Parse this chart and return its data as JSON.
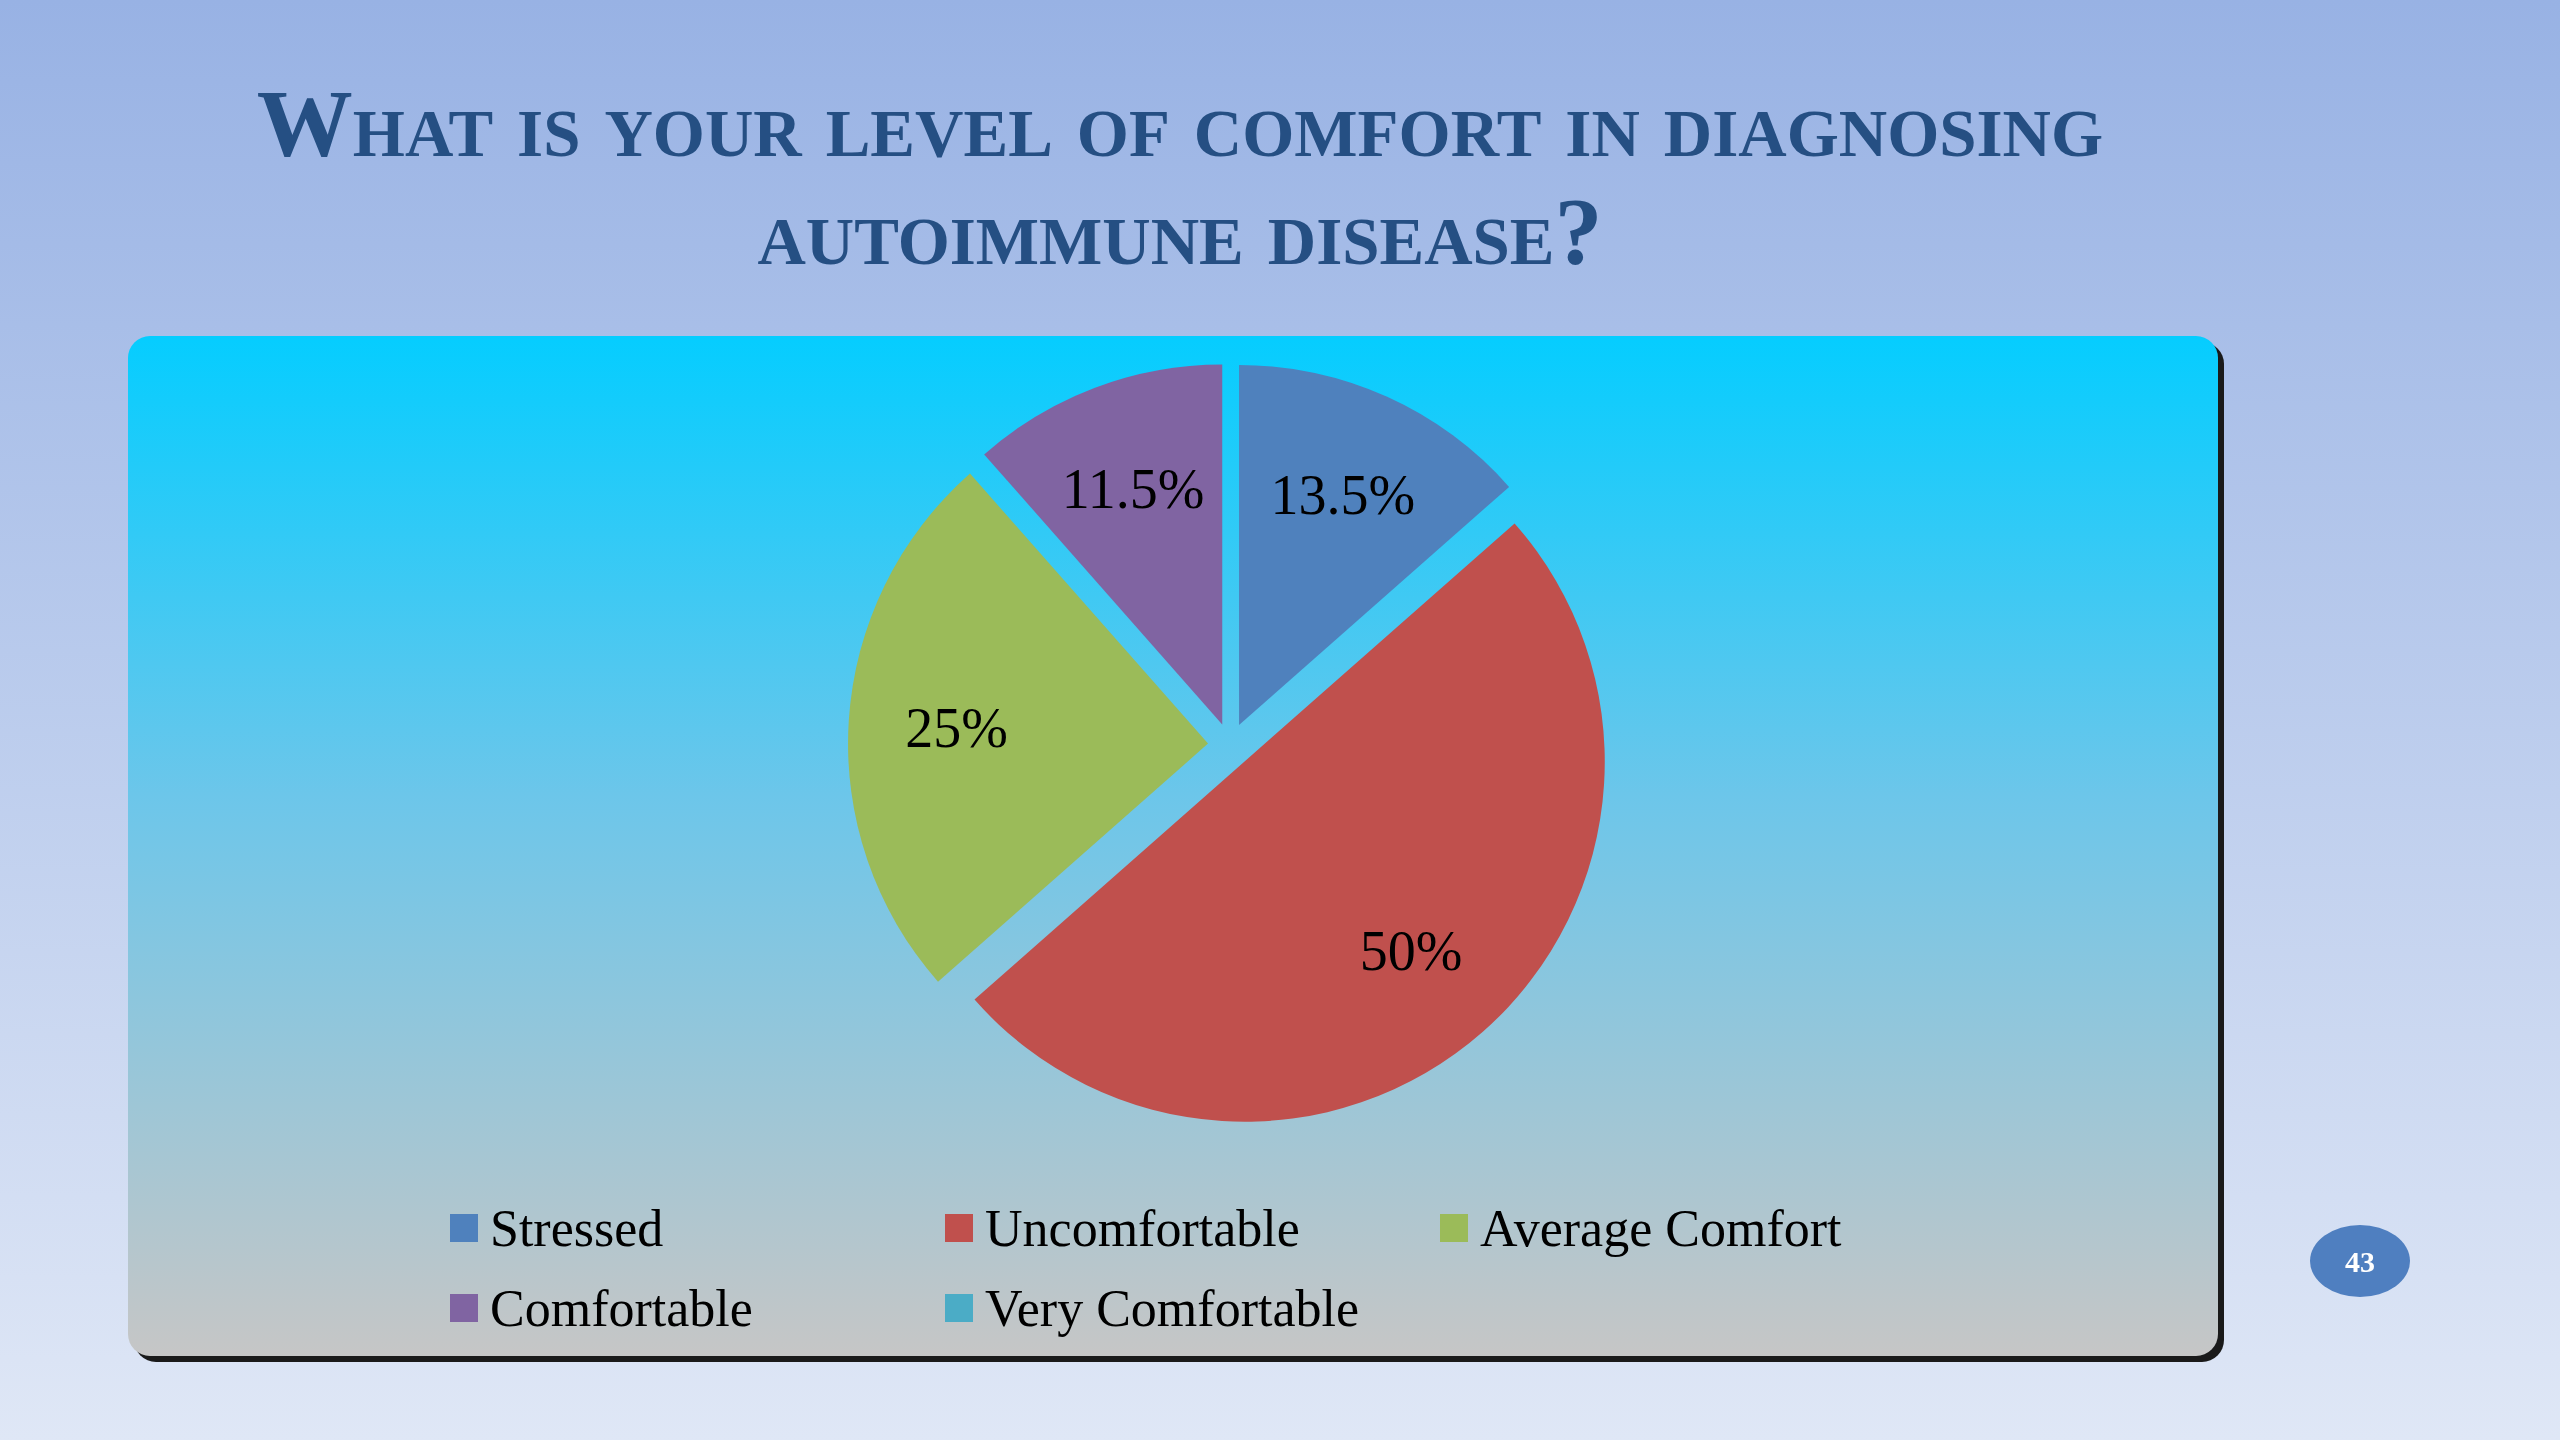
{
  "chart_data": {
    "type": "pie",
    "title": "What is your level of comfort in diagnosing autoimmune disease?",
    "categories": [
      "Stressed",
      "Uncomfortable",
      "Average Comfort",
      "Comfortable",
      "Very Comfortable"
    ],
    "values": [
      13.5,
      50,
      25,
      11.5,
      0
    ],
    "colors": [
      "#4f81bd",
      "#c0504d",
      "#9bbb59",
      "#8064a2",
      "#4bacc6"
    ],
    "value_labels": [
      "13.5%",
      "50%",
      "25%",
      "11.5%",
      null
    ],
    "legend": "bottom",
    "annotations": [
      "43"
    ]
  }
}
